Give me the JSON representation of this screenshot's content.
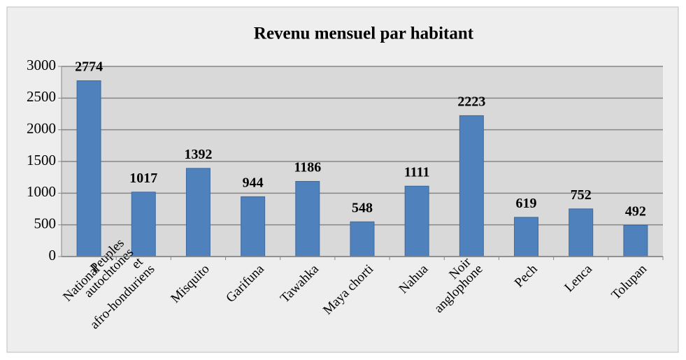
{
  "chart_data": {
    "type": "bar",
    "title": "Revenu mensuel par habitant",
    "categories": [
      "National",
      "Peuples autochtones et afro-honduriens",
      "Misquito",
      "Garifuna",
      "Tawahka",
      "Maya chorti",
      "Nahua",
      "Noir anglophone",
      "Pech",
      "Lenca",
      "Tolupan"
    ],
    "values": [
      2774,
      1017,
      1392,
      944,
      1186,
      548,
      1111,
      2223,
      619,
      752,
      492
    ],
    "color": "#4f81bd",
    "ylim": [
      0,
      3000
    ],
    "yticks": [
      0,
      500,
      1000,
      1500,
      2000,
      2500,
      3000
    ],
    "grid": true
  }
}
